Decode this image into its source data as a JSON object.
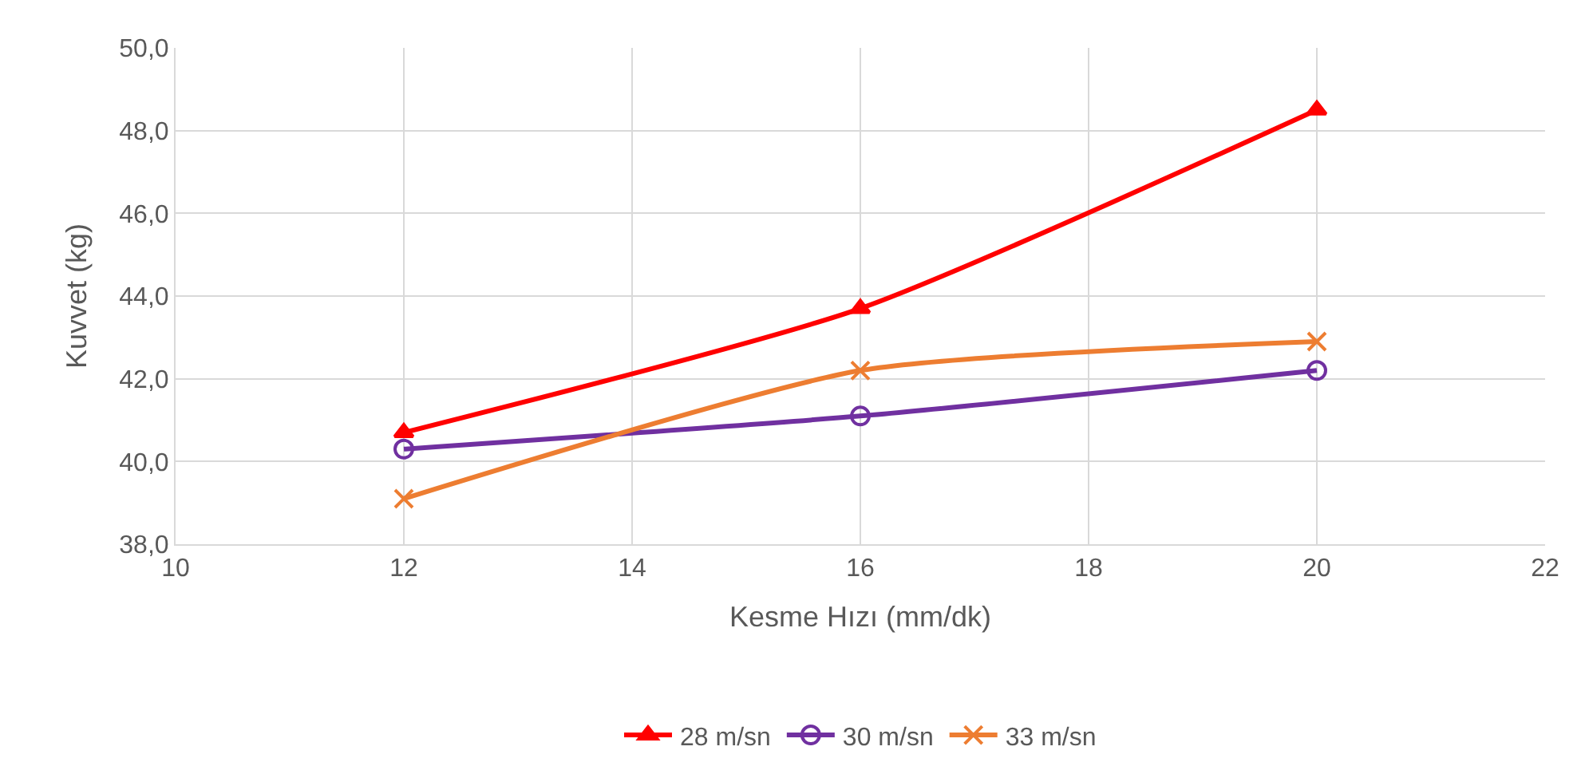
{
  "chart_data": {
    "type": "line",
    "xlabel": "Kesme Hızı (mm/dk)",
    "ylabel": "Kuvvet (kg)",
    "x": [
      12,
      16,
      20
    ],
    "series": [
      {
        "name": "28 m/sn",
        "color": "#ff0000",
        "marker": "triangle",
        "values": [
          40.7,
          43.7,
          48.5
        ]
      },
      {
        "name": "30 m/sn",
        "color": "#7030a0",
        "marker": "circle",
        "values": [
          40.3,
          41.1,
          42.2
        ]
      },
      {
        "name": "33 m/sn",
        "color": "#ed7d31",
        "marker": "cross",
        "values": [
          39.1,
          42.2,
          42.9
        ]
      }
    ],
    "xlim": [
      10,
      22
    ],
    "xticks": [
      10,
      12,
      14,
      16,
      18,
      20,
      22
    ],
    "ylim": [
      38,
      50
    ],
    "yticks": [
      {
        "value": 38,
        "label": "38,0"
      },
      {
        "value": 40,
        "label": "40,0"
      },
      {
        "value": 42,
        "label": "42,0"
      },
      {
        "value": 44,
        "label": "44,0"
      },
      {
        "value": 46,
        "label": "46,0"
      },
      {
        "value": 48,
        "label": "48,0"
      },
      {
        "value": 50,
        "label": "50,0"
      }
    ],
    "grid": true,
    "legend": "bottom"
  }
}
